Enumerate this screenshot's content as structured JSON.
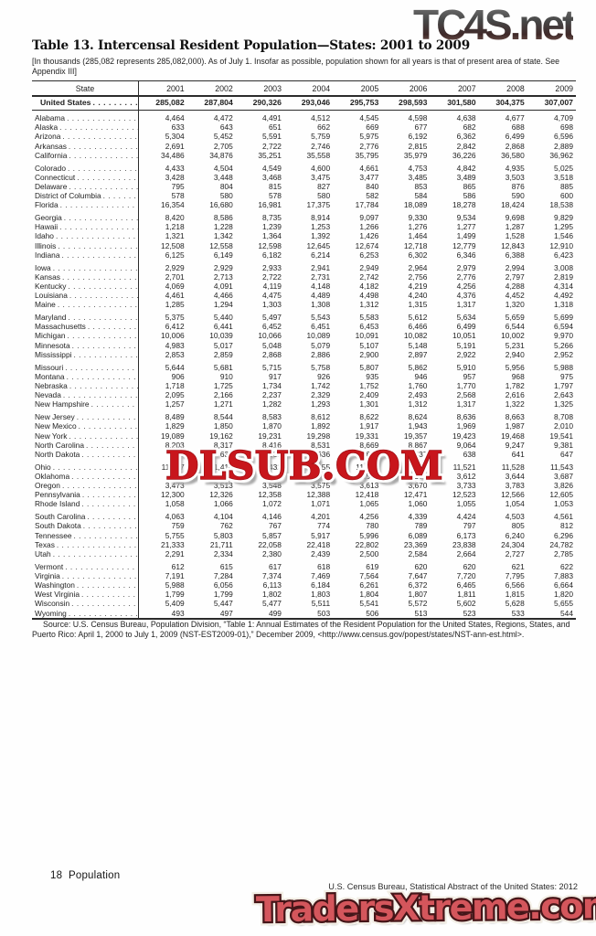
{
  "watermarks": {
    "top": "TC4S.net",
    "middle": "DLSUB.COM",
    "bottom": "TradersXtreme.com"
  },
  "title": "Table 13. Intercensal Resident Population—States: 2001 to 2009",
  "note": "[In thousands (285,082 represents 285,082,000). As of July 1. Insofar as possible, population shown for all years is that of present area of state. See Appendix III]",
  "table": {
    "state_header": "State",
    "years": [
      "2001",
      "2002",
      "2003",
      "2004",
      "2005",
      "2006",
      "2007",
      "2008",
      "2009"
    ],
    "united_states": {
      "label": "United States",
      "values": [
        "285,082",
        "287,804",
        "290,326",
        "293,046",
        "295,753",
        "298,593",
        "301,580",
        "304,375",
        "307,007"
      ]
    },
    "groups": [
      [
        {
          "state": "Alabama",
          "values": [
            "4,464",
            "4,472",
            "4,491",
            "4,512",
            "4,545",
            "4,598",
            "4,638",
            "4,677",
            "4,709"
          ]
        },
        {
          "state": "Alaska",
          "values": [
            "633",
            "643",
            "651",
            "662",
            "669",
            "677",
            "682",
            "688",
            "698"
          ]
        },
        {
          "state": "Arizona",
          "values": [
            "5,304",
            "5,452",
            "5,591",
            "5,759",
            "5,975",
            "6,192",
            "6,362",
            "6,499",
            "6,596"
          ]
        },
        {
          "state": "Arkansas",
          "values": [
            "2,691",
            "2,705",
            "2,722",
            "2,746",
            "2,776",
            "2,815",
            "2,842",
            "2,868",
            "2,889"
          ]
        },
        {
          "state": "California",
          "values": [
            "34,486",
            "34,876",
            "35,251",
            "35,558",
            "35,795",
            "35,979",
            "36,226",
            "36,580",
            "36,962"
          ]
        }
      ],
      [
        {
          "state": "Colorado",
          "values": [
            "4,433",
            "4,504",
            "4,549",
            "4,600",
            "4,661",
            "4,753",
            "4,842",
            "4,935",
            "5,025"
          ]
        },
        {
          "state": "Connecticut",
          "values": [
            "3,428",
            "3,448",
            "3,468",
            "3,475",
            "3,477",
            "3,485",
            "3,489",
            "3,503",
            "3,518"
          ]
        },
        {
          "state": "Delaware",
          "values": [
            "795",
            "804",
            "815",
            "827",
            "840",
            "853",
            "865",
            "876",
            "885"
          ]
        },
        {
          "state": "District of Columbia",
          "values": [
            "578",
            "580",
            "578",
            "580",
            "582",
            "584",
            "586",
            "590",
            "600"
          ]
        },
        {
          "state": "Florida",
          "values": [
            "16,354",
            "16,680",
            "16,981",
            "17,375",
            "17,784",
            "18,089",
            "18,278",
            "18,424",
            "18,538"
          ]
        }
      ],
      [
        {
          "state": "Georgia",
          "values": [
            "8,420",
            "8,586",
            "8,735",
            "8,914",
            "9,097",
            "9,330",
            "9,534",
            "9,698",
            "9,829"
          ]
        },
        {
          "state": "Hawaii",
          "values": [
            "1,218",
            "1,228",
            "1,239",
            "1,253",
            "1,266",
            "1,276",
            "1,277",
            "1,287",
            "1,295"
          ]
        },
        {
          "state": "Idaho",
          "values": [
            "1,321",
            "1,342",
            "1,364",
            "1,392",
            "1,426",
            "1,464",
            "1,499",
            "1,528",
            "1,546"
          ]
        },
        {
          "state": "Illinois",
          "values": [
            "12,508",
            "12,558",
            "12,598",
            "12,645",
            "12,674",
            "12,718",
            "12,779",
            "12,843",
            "12,910"
          ]
        },
        {
          "state": "Indiana",
          "values": [
            "6,125",
            "6,149",
            "6,182",
            "6,214",
            "6,253",
            "6,302",
            "6,346",
            "6,388",
            "6,423"
          ]
        }
      ],
      [
        {
          "state": "Iowa",
          "values": [
            "2,929",
            "2,929",
            "2,933",
            "2,941",
            "2,949",
            "2,964",
            "2,979",
            "2,994",
            "3,008"
          ]
        },
        {
          "state": "Kansas",
          "values": [
            "2,701",
            "2,713",
            "2,722",
            "2,731",
            "2,742",
            "2,756",
            "2,776",
            "2,797",
            "2,819"
          ]
        },
        {
          "state": "Kentucky",
          "values": [
            "4,069",
            "4,091",
            "4,119",
            "4,148",
            "4,182",
            "4,219",
            "4,256",
            "4,288",
            "4,314"
          ]
        },
        {
          "state": "Louisiana",
          "values": [
            "4,461",
            "4,466",
            "4,475",
            "4,489",
            "4,498",
            "4,240",
            "4,376",
            "4,452",
            "4,492"
          ]
        },
        {
          "state": "Maine",
          "values": [
            "1,285",
            "1,294",
            "1,303",
            "1,308",
            "1,312",
            "1,315",
            "1,317",
            "1,320",
            "1,318"
          ]
        }
      ],
      [
        {
          "state": "Maryland",
          "values": [
            "5,375",
            "5,440",
            "5,497",
            "5,543",
            "5,583",
            "5,612",
            "5,634",
            "5,659",
            "5,699"
          ]
        },
        {
          "state": "Massachusetts",
          "values": [
            "6,412",
            "6,441",
            "6,452",
            "6,451",
            "6,453",
            "6,466",
            "6,499",
            "6,544",
            "6,594"
          ]
        },
        {
          "state": "Michigan",
          "values": [
            "10,006",
            "10,039",
            "10,066",
            "10,089",
            "10,091",
            "10,082",
            "10,051",
            "10,002",
            "9,970"
          ]
        },
        {
          "state": "Minnesota",
          "values": [
            "4,983",
            "5,017",
            "5,048",
            "5,079",
            "5,107",
            "5,148",
            "5,191",
            "5,231",
            "5,266"
          ]
        },
        {
          "state": "Mississippi",
          "values": [
            "2,853",
            "2,859",
            "2,868",
            "2,886",
            "2,900",
            "2,897",
            "2,922",
            "2,940",
            "2,952"
          ]
        }
      ],
      [
        {
          "state": "Missouri",
          "values": [
            "5,644",
            "5,681",
            "5,715",
            "5,758",
            "5,807",
            "5,862",
            "5,910",
            "5,956",
            "5,988"
          ]
        },
        {
          "state": "Montana",
          "values": [
            "906",
            "910",
            "917",
            "926",
            "935",
            "946",
            "957",
            "968",
            "975"
          ]
        },
        {
          "state": "Nebraska",
          "values": [
            "1,718",
            "1,725",
            "1,734",
            "1,742",
            "1,752",
            "1,760",
            "1,770",
            "1,782",
            "1,797"
          ]
        },
        {
          "state": "Nevada",
          "values": [
            "2,095",
            "2,166",
            "2,237",
            "2,329",
            "2,409",
            "2,493",
            "2,568",
            "2,616",
            "2,643"
          ]
        },
        {
          "state": "New Hampshire",
          "values": [
            "1,257",
            "1,271",
            "1,282",
            "1,293",
            "1,301",
            "1,312",
            "1,317",
            "1,322",
            "1,325"
          ]
        }
      ],
      [
        {
          "state": "New Jersey",
          "values": [
            "8,489",
            "8,544",
            "8,583",
            "8,612",
            "8,622",
            "8,624",
            "8,636",
            "8,663",
            "8,708"
          ]
        },
        {
          "state": "New Mexico",
          "values": [
            "1,829",
            "1,850",
            "1,870",
            "1,892",
            "1,917",
            "1,943",
            "1,969",
            "1,987",
            "2,010"
          ]
        },
        {
          "state": "New York",
          "values": [
            "19,089",
            "19,162",
            "19,231",
            "19,298",
            "19,331",
            "19,357",
            "19,423",
            "19,468",
            "19,541"
          ]
        },
        {
          "state": "North Carolina",
          "values": [
            "8,203",
            "8,317",
            "8,416",
            "8,531",
            "8,669",
            "8,867",
            "9,064",
            "9,247",
            "9,381"
          ]
        },
        {
          "state": "North Dakota",
          "values": [
            "636",
            "634",
            "633",
            "636",
            "635",
            "637",
            "638",
            "641",
            "647"
          ]
        }
      ],
      [
        {
          "state": "Ohio",
          "values": [
            "11,387",
            "11,410",
            "11,432",
            "11,455",
            "11,470",
            "11,492",
            "11,521",
            "11,528",
            "11,543"
          ]
        },
        {
          "state": "Oklahoma",
          "values": [
            "3,467",
            "3,490",
            "3,507",
            "3,524",
            "3,543",
            "3,577",
            "3,612",
            "3,644",
            "3,687"
          ]
        },
        {
          "state": "Oregon",
          "values": [
            "3,473",
            "3,513",
            "3,548",
            "3,575",
            "3,613",
            "3,670",
            "3,733",
            "3,783",
            "3,826"
          ]
        },
        {
          "state": "Pennsylvania",
          "values": [
            "12,300",
            "12,326",
            "12,358",
            "12,388",
            "12,418",
            "12,471",
            "12,523",
            "12,566",
            "12,605"
          ]
        },
        {
          "state": "Rhode Island",
          "values": [
            "1,058",
            "1,066",
            "1,072",
            "1,071",
            "1,065",
            "1,060",
            "1,055",
            "1,054",
            "1,053"
          ]
        }
      ],
      [
        {
          "state": "South Carolina",
          "values": [
            "4,063",
            "4,104",
            "4,146",
            "4,201",
            "4,256",
            "4,339",
            "4,424",
            "4,503",
            "4,561"
          ]
        },
        {
          "state": "South Dakota",
          "values": [
            "759",
            "762",
            "767",
            "774",
            "780",
            "789",
            "797",
            "805",
            "812"
          ]
        },
        {
          "state": "Tennessee",
          "values": [
            "5,755",
            "5,803",
            "5,857",
            "5,917",
            "5,996",
            "6,089",
            "6,173",
            "6,240",
            "6,296"
          ]
        },
        {
          "state": "Texas",
          "values": [
            "21,333",
            "21,711",
            "22,058",
            "22,418",
            "22,802",
            "23,369",
            "23,838",
            "24,304",
            "24,782"
          ]
        },
        {
          "state": "Utah",
          "values": [
            "2,291",
            "2,334",
            "2,380",
            "2,439",
            "2,500",
            "2,584",
            "2,664",
            "2,727",
            "2,785"
          ]
        }
      ],
      [
        {
          "state": "Vermont",
          "values": [
            "612",
            "615",
            "617",
            "618",
            "619",
            "620",
            "620",
            "621",
            "622"
          ]
        },
        {
          "state": "Virginia",
          "values": [
            "7,191",
            "7,284",
            "7,374",
            "7,469",
            "7,564",
            "7,647",
            "7,720",
            "7,795",
            "7,883"
          ]
        },
        {
          "state": "Washington",
          "values": [
            "5,988",
            "6,056",
            "6,113",
            "6,184",
            "6,261",
            "6,372",
            "6,465",
            "6,566",
            "6,664"
          ]
        },
        {
          "state": "West Virginia",
          "values": [
            "1,799",
            "1,799",
            "1,802",
            "1,803",
            "1,804",
            "1,807",
            "1,811",
            "1,815",
            "1,820"
          ]
        },
        {
          "state": "Wisconsin",
          "values": [
            "5,409",
            "5,447",
            "5,477",
            "5,511",
            "5,541",
            "5,572",
            "5,602",
            "5,628",
            "5,655"
          ]
        },
        {
          "state": "Wyoming",
          "values": [
            "493",
            "497",
            "499",
            "503",
            "506",
            "513",
            "523",
            "533",
            "544"
          ]
        }
      ]
    ]
  },
  "source": "Source: U.S. Census Bureau, Population Division, “Table 1: Annual Estimates of the Resident Population for the United States, Regions, States, and Puerto Rico: April 1, 2000 to July 1, 2009 (NST-EST2009-01),” December 2009, <http://www.census.gov/popest/states/NST-ann-est.html>.",
  "footer": {
    "left": "18  Population",
    "right": "U.S. Census Bureau, Statistical Abstract of the United States: 2012"
  },
  "colors": {
    "rule": "#2b2b2b",
    "watermark_top_gray": "#555555",
    "watermark_top_maroon": "#6b4a45",
    "watermark_middle_red": "#c8161c",
    "watermark_bottom_fill": "#d4565c",
    "watermark_bottom_outline": "#451518"
  }
}
